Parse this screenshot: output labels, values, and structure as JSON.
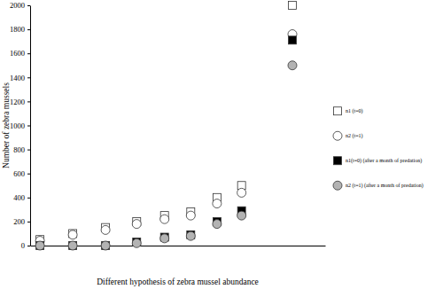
{
  "chart_data": {
    "type": "scatter",
    "x_label": "Different hypothesis of zebra mussel abundance",
    "y_label": "Number  of zebra mussels",
    "x": [
      0.3,
      1.3,
      2.3,
      3.25,
      4.1,
      4.9,
      5.7,
      6.45,
      8
    ],
    "xlim": [
      0,
      9
    ],
    "ylim": [
      0,
      2000
    ],
    "yticks": [
      0,
      200,
      400,
      600,
      800,
      1000,
      1200,
      1400,
      1600,
      1800,
      2000
    ],
    "tick_labels": "y",
    "legend": "right",
    "series": [
      {
        "name": "n1 (t=0)",
        "color": "#ffffff",
        "marker": "square",
        "values": [
          50,
          100,
          150,
          200,
          250,
          280,
          400,
          500,
          2000
        ]
      },
      {
        "name": "n2 (t=1)",
        "color": "#ffffff",
        "marker": "circle",
        "values": [
          40,
          90,
          130,
          180,
          220,
          250,
          350,
          440,
          1760
        ]
      },
      {
        "name": "n1(t=0) (after a month of predation)",
        "color": "#000000",
        "marker": "square",
        "values": [
          0,
          0,
          0,
          30,
          70,
          90,
          200,
          290,
          1710
        ]
      },
      {
        "name": "n2 (t=1) (after a month of predation)",
        "color": "#b3b3b3",
        "marker": "circle",
        "values": [
          0,
          0,
          0,
          20,
          60,
          80,
          180,
          250,
          1500
        ]
      }
    ]
  }
}
